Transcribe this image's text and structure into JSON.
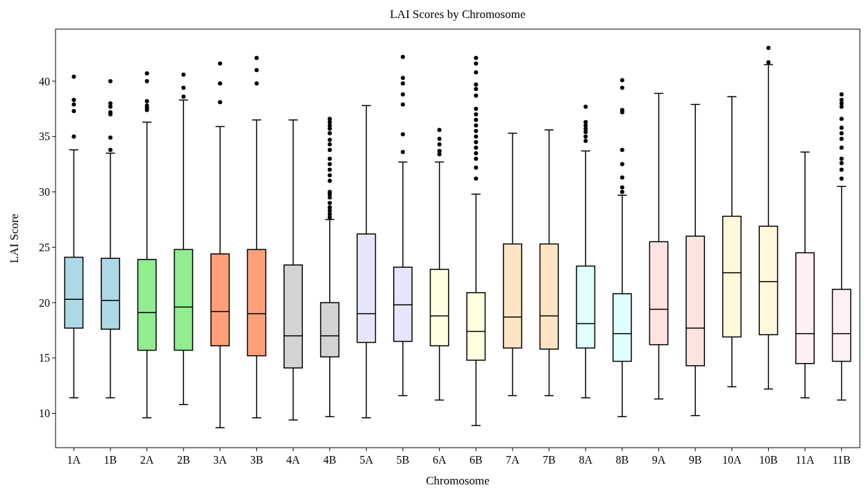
{
  "chart_data": {
    "type": "box",
    "title": "LAI Scores by Chromosome",
    "xlabel": "Chromosome",
    "ylabel": "LAI Score",
    "categories": [
      "1A",
      "1B",
      "2A",
      "2B",
      "3A",
      "3B",
      "4A",
      "4B",
      "5A",
      "5B",
      "6A",
      "6B",
      "7A",
      "7B",
      "8A",
      "8B",
      "9A",
      "9B",
      "10A",
      "10B",
      "11A",
      "11B"
    ],
    "colors": [
      "#add8e6",
      "#add8e6",
      "#90ee90",
      "#90ee90",
      "#ffa07a",
      "#ffa07a",
      "#d3d3d3",
      "#d3d3d3",
      "#e6e6fa",
      "#e6e6fa",
      "#ffffe0",
      "#ffffe0",
      "#ffe4c4",
      "#ffe4c4",
      "#e0ffff",
      "#e0ffff",
      "#ffe4e1",
      "#ffe4e1",
      "#fff8dc",
      "#fff8dc",
      "#fff0f5",
      "#fff0f5"
    ],
    "boxes": [
      {
        "low": 11.4,
        "q1": 17.7,
        "median": 20.3,
        "q3": 24.1,
        "high": 33.8,
        "outliers": [
          35.0,
          37.3,
          37.9,
          38.3,
          40.4
        ]
      },
      {
        "low": 11.4,
        "q1": 17.6,
        "median": 20.2,
        "q3": 24.0,
        "high": 33.5,
        "outliers": [
          33.8,
          34.9,
          37.0,
          37.2,
          37.7,
          38.0,
          40.0
        ]
      },
      {
        "low": 9.6,
        "q1": 15.7,
        "median": 19.1,
        "q3": 23.9,
        "high": 36.3,
        "outliers": [
          37.4,
          37.6,
          37.8,
          38.2,
          40.0,
          40.7
        ]
      },
      {
        "low": 10.8,
        "q1": 15.7,
        "median": 19.6,
        "q3": 24.8,
        "high": 38.3,
        "outliers": [
          38.6,
          39.4,
          40.6
        ]
      },
      {
        "low": 8.7,
        "q1": 16.1,
        "median": 19.2,
        "q3": 24.4,
        "high": 35.9,
        "outliers": [
          38.1,
          39.8,
          41.6
        ]
      },
      {
        "low": 9.6,
        "q1": 15.2,
        "median": 19.0,
        "q3": 24.8,
        "high": 36.5,
        "outliers": [
          39.8,
          41.0,
          42.1
        ]
      },
      {
        "low": 9.4,
        "q1": 14.1,
        "median": 17.0,
        "q3": 23.4,
        "high": 36.5
      },
      {
        "low": 9.7,
        "q1": 15.1,
        "median": 17.0,
        "q3": 20.0,
        "high": 27.5,
        "outliers": [
          27.7,
          28.0,
          28.3,
          28.6,
          29.0,
          29.5,
          29.8,
          30.0,
          31.0,
          31.5,
          32.0,
          32.5,
          33.0,
          33.8,
          34.3,
          34.7,
          35.3,
          35.7,
          36.0,
          36.3,
          36.6
        ]
      },
      {
        "low": 9.6,
        "q1": 16.4,
        "median": 19.0,
        "q3": 26.2,
        "high": 37.8
      },
      {
        "low": 11.6,
        "q1": 16.5,
        "median": 19.8,
        "q3": 23.2,
        "high": 32.7,
        "outliers": [
          33.6,
          35.2,
          37.9,
          38.8,
          39.8,
          40.3,
          42.2
        ]
      },
      {
        "low": 11.2,
        "q1": 16.1,
        "median": 18.8,
        "q3": 23.0,
        "high": 32.7,
        "outliers": [
          33.4,
          33.7,
          34.3,
          34.8,
          35.6
        ]
      },
      {
        "low": 8.9,
        "q1": 14.8,
        "median": 17.4,
        "q3": 20.9,
        "high": 29.8,
        "outliers": [
          31.2,
          32.2,
          33.0,
          33.5,
          34.0,
          34.5,
          35.0,
          35.5,
          36.0,
          36.5,
          37.0,
          37.5,
          38.7,
          39.3,
          39.7,
          40.8,
          41.6,
          42.1
        ]
      },
      {
        "low": 11.6,
        "q1": 15.9,
        "median": 18.7,
        "q3": 25.3,
        "high": 35.3
      },
      {
        "low": 11.6,
        "q1": 15.8,
        "median": 18.8,
        "q3": 25.3,
        "high": 35.6
      },
      {
        "low": 11.4,
        "q1": 15.9,
        "median": 18.1,
        "q3": 23.3,
        "high": 33.7,
        "outliers": [
          34.6,
          35.0,
          35.4,
          35.7,
          36.0,
          36.3,
          37.7
        ]
      },
      {
        "low": 9.7,
        "q1": 14.7,
        "median": 17.2,
        "q3": 20.8,
        "high": 29.7,
        "outliers": [
          30.0,
          30.4,
          31.3,
          32.5,
          33.8,
          37.2,
          37.4,
          39.4,
          40.1
        ]
      },
      {
        "low": 11.3,
        "q1": 16.2,
        "median": 19.4,
        "q3": 25.5,
        "high": 38.9
      },
      {
        "low": 9.8,
        "q1": 14.3,
        "median": 17.7,
        "q3": 26.0,
        "high": 37.9
      },
      {
        "low": 12.4,
        "q1": 16.9,
        "median": 22.7,
        "q3": 27.8,
        "high": 38.6
      },
      {
        "low": 12.2,
        "q1": 17.1,
        "median": 21.9,
        "q3": 26.9,
        "high": 41.5,
        "outliers": [
          41.7,
          43.0
        ]
      },
      {
        "low": 11.4,
        "q1": 14.5,
        "median": 17.2,
        "q3": 24.5,
        "high": 33.6
      },
      {
        "low": 11.2,
        "q1": 14.7,
        "median": 17.2,
        "q3": 21.2,
        "high": 30.5,
        "outliers": [
          31.2,
          32.0,
          32.6,
          33.0,
          34.0,
          34.8,
          35.3,
          35.8,
          36.6,
          37.7,
          38.0,
          38.3,
          38.8
        ]
      }
    ],
    "ylim": [
      6.9,
      44.7
    ],
    "yticks": [
      10,
      15,
      20,
      25,
      30,
      35,
      40
    ],
    "grid": false
  }
}
